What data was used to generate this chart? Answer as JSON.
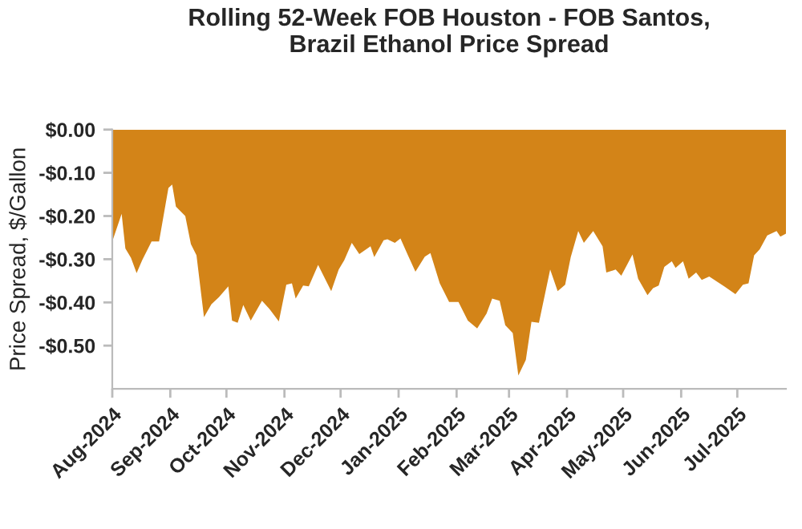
{
  "chart_data": {
    "type": "area",
    "title": "Rolling 52-Week FOB Houston - FOB Santos,\nBrazil Ethanol Price Spread",
    "ylabel": "Price Spread, $/Gallon",
    "x": [
      "2024-08-01",
      "2024-08-06",
      "2024-08-08",
      "2024-08-11",
      "2024-08-14",
      "2024-08-17",
      "2024-08-22",
      "2024-08-26",
      "2024-08-31",
      "2024-09-02",
      "2024-09-04",
      "2024-09-09",
      "2024-09-12",
      "2024-09-15",
      "2024-09-19",
      "2024-09-23",
      "2024-09-27",
      "2024-10-02",
      "2024-10-04",
      "2024-10-07",
      "2024-10-10",
      "2024-10-14",
      "2024-10-20",
      "2024-10-24",
      "2024-10-29",
      "2024-11-02",
      "2024-11-05",
      "2024-11-07",
      "2024-11-11",
      "2024-11-14",
      "2024-11-19",
      "2024-11-26",
      "2024-11-30",
      "2024-12-03",
      "2024-12-07",
      "2024-12-11",
      "2024-12-17",
      "2024-12-19",
      "2024-12-24",
      "2024-12-26",
      "2024-12-30",
      "2025-01-02",
      "2025-01-06",
      "2025-01-10",
      "2025-01-15",
      "2025-01-18",
      "2025-01-23",
      "2025-01-28",
      "2025-02-02",
      "2025-02-07",
      "2025-02-12",
      "2025-02-17",
      "2025-02-20",
      "2025-02-24",
      "2025-02-27",
      "2025-03-03",
      "2025-03-06",
      "2025-03-10",
      "2025-03-13",
      "2025-03-17",
      "2025-03-23",
      "2025-03-27",
      "2025-03-31",
      "2025-04-03",
      "2025-04-07",
      "2025-04-10",
      "2025-04-15",
      "2025-04-20",
      "2025-04-22",
      "2025-04-27",
      "2025-04-30",
      "2025-05-06",
      "2025-05-09",
      "2025-05-14",
      "2025-05-17",
      "2025-05-20",
      "2025-05-23",
      "2025-05-27",
      "2025-05-29",
      "2025-06-02",
      "2025-06-05",
      "2025-06-09",
      "2025-06-12",
      "2025-06-16",
      "2025-06-24",
      "2025-06-30",
      "2025-07-04",
      "2025-07-07",
      "2025-07-10",
      "2025-07-13",
      "2025-07-17",
      "2025-07-22",
      "2025-07-24",
      "2025-07-27"
    ],
    "series": [
      {
        "color": "#d38418",
        "values": [
          -0.259,
          -0.195,
          -0.275,
          -0.297,
          -0.332,
          -0.302,
          -0.259,
          -0.259,
          -0.135,
          -0.127,
          -0.178,
          -0.2,
          -0.265,
          -0.291,
          -0.434,
          -0.404,
          -0.388,
          -0.363,
          -0.442,
          -0.447,
          -0.406,
          -0.442,
          -0.396,
          -0.415,
          -0.444,
          -0.359,
          -0.356,
          -0.391,
          -0.361,
          -0.363,
          -0.313,
          -0.374,
          -0.324,
          -0.302,
          -0.262,
          -0.288,
          -0.27,
          -0.295,
          -0.256,
          -0.254,
          -0.262,
          -0.252,
          -0.291,
          -0.329,
          -0.294,
          -0.286,
          -0.356,
          -0.399,
          -0.399,
          -0.442,
          -0.46,
          -0.426,
          -0.391,
          -0.396,
          -0.453,
          -0.471,
          -0.569,
          -0.533,
          -0.445,
          -0.447,
          -0.324,
          -0.374,
          -0.359,
          -0.295,
          -0.235,
          -0.262,
          -0.235,
          -0.27,
          -0.331,
          -0.324,
          -0.338,
          -0.289,
          -0.345,
          -0.383,
          -0.367,
          -0.361,
          -0.318,
          -0.305,
          -0.32,
          -0.305,
          -0.345,
          -0.331,
          -0.348,
          -0.34,
          -0.363,
          -0.381,
          -0.359,
          -0.356,
          -0.291,
          -0.277,
          -0.245,
          -0.235,
          -0.248,
          -0.241
        ]
      }
    ],
    "xlim": [
      "2024-08-01",
      "2025-07-27"
    ],
    "xticks": [
      {
        "value": "2024-08-01",
        "label": "Aug-2024"
      },
      {
        "value": "2024-09-01",
        "label": "Sep-2024"
      },
      {
        "value": "2024-10-01",
        "label": "Oct-2024"
      },
      {
        "value": "2024-11-01",
        "label": "Nov-2024"
      },
      {
        "value": "2024-12-01",
        "label": "Dec-2024"
      },
      {
        "value": "2025-01-01",
        "label": "Jan-2025"
      },
      {
        "value": "2025-02-01",
        "label": "Feb-2025"
      },
      {
        "value": "2025-03-01",
        "label": "Mar-2025"
      },
      {
        "value": "2025-04-01",
        "label": "Apr-2025"
      },
      {
        "value": "2025-05-01",
        "label": "May-2025"
      },
      {
        "value": "2025-06-01",
        "label": "Jun-2025"
      },
      {
        "value": "2025-07-01",
        "label": "Jul-2025"
      }
    ],
    "ylim": [
      -0.6,
      0
    ],
    "yticks": [
      {
        "value": 0,
        "label": "$0.00"
      },
      {
        "value": -0.1,
        "label": "-$0.10"
      },
      {
        "value": -0.2,
        "label": "-$0.20"
      },
      {
        "value": -0.3,
        "label": "-$0.30"
      },
      {
        "value": -0.4,
        "label": "-$0.40"
      },
      {
        "value": -0.5,
        "label": "-$0.50"
      }
    ],
    "grid": false,
    "legend": false
  }
}
